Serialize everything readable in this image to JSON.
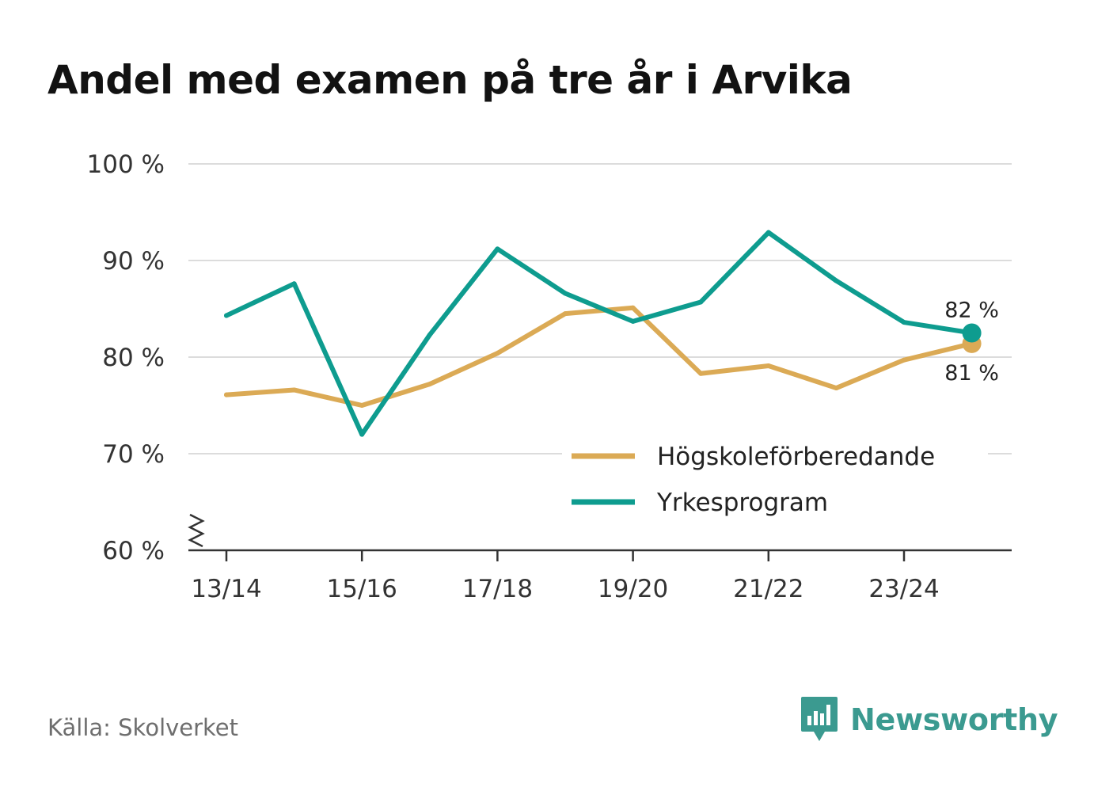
{
  "title": "Andel med examen på tre år i Arvika",
  "source": "Källa: Skolverket",
  "brand": {
    "name": "Newsworthy",
    "icon": "newsworthy-logo-icon"
  },
  "colors": {
    "hogskole": "#dbaa55",
    "yrke": "#0e9c8f",
    "grid": "#dcdcdc",
    "axis": "#333333",
    "brand": "#3b9a90"
  },
  "chart_data": {
    "type": "line",
    "title": "Andel med examen på tre år i Arvika",
    "xlabel": "",
    "ylabel": "",
    "categories": [
      "13/14",
      "14/15",
      "15/16",
      "16/17",
      "17/18",
      "18/19",
      "19/20",
      "20/21",
      "21/22",
      "22/23",
      "23/24",
      "24/25"
    ],
    "x_tick_labels": [
      "13/14",
      "15/16",
      "17/18",
      "19/20",
      "21/22",
      "23/24"
    ],
    "y_ticks": [
      60,
      70,
      80,
      90,
      100
    ],
    "y_tick_labels": [
      "60 %",
      "70 %",
      "80 %",
      "90 %",
      "100 %"
    ],
    "ylim": [
      60,
      100
    ],
    "y_axis_break": true,
    "grid": true,
    "legend_position": "bottom-right",
    "series": [
      {
        "name": "Högskoleförberedande",
        "key": "hogskole",
        "values": [
          76.1,
          76.6,
          75.0,
          77.2,
          80.4,
          84.5,
          85.1,
          78.3,
          79.1,
          76.8,
          79.7,
          81.4
        ],
        "end_label": "81 %"
      },
      {
        "name": "Yrkesprogram",
        "key": "yrke",
        "values": [
          84.3,
          87.6,
          72.0,
          82.3,
          91.2,
          86.6,
          83.7,
          85.7,
          92.9,
          87.9,
          83.6,
          82.5
        ],
        "end_label": "82 %"
      }
    ]
  }
}
